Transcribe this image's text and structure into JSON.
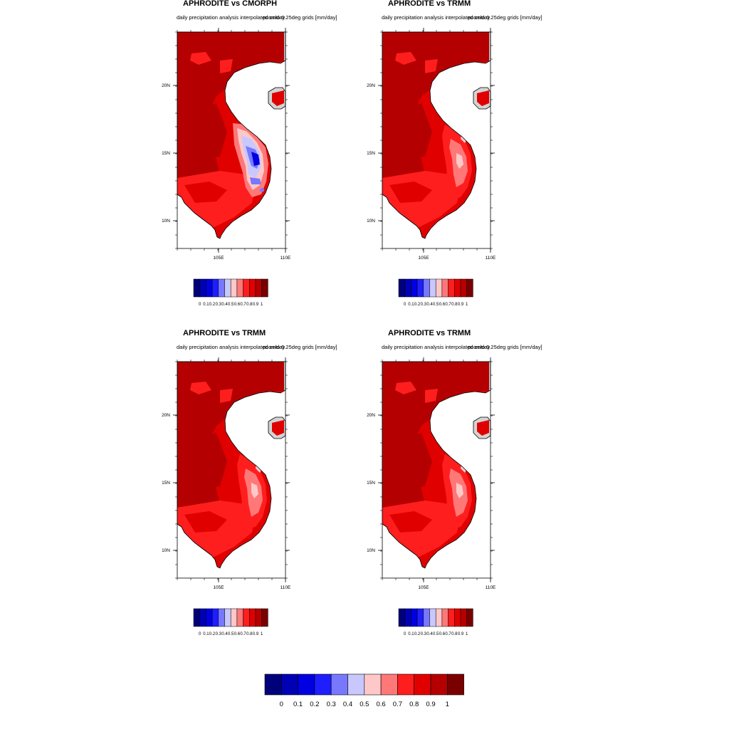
{
  "panels": [
    {
      "title": "APHRODITE vs CMORPH",
      "subtitle_left": "daily precipitation analysis interpolated onto 0.25deg grids [mm/day]",
      "subtitle_right": "pcorr/day",
      "variant": "cmorph"
    },
    {
      "title": "APHRODITE vs TRMM",
      "subtitle_left": "daily precipitation analysis interpolated onto 0.25deg grids [mm/day]",
      "subtitle_right": "pcorr/day",
      "variant": "trmm"
    },
    {
      "title": "APHRODITE vs TRMM",
      "subtitle_left": "daily precipitation analysis interpolated onto 0.25deg grids [mm/day]",
      "subtitle_right": "pcorr/day",
      "variant": "trmm"
    },
    {
      "title": "APHRODITE vs TRMM",
      "subtitle_left": "daily precipitation analysis interpolated onto 0.25deg grids [mm/day]",
      "subtitle_right": "pcorr/day",
      "variant": "trmm"
    }
  ],
  "axes": {
    "x_ticks": [
      "105E",
      "110E"
    ],
    "y_ticks": [
      "20N",
      "15N",
      "10N"
    ]
  },
  "colorbar": {
    "levels": [
      "0",
      "0.1",
      "0.2",
      "0.3",
      "0.4",
      "0.5",
      "0.6",
      "0.7",
      "0.8",
      "0.9",
      "1"
    ],
    "colors": [
      "#00007a",
      "#0000b4",
      "#0000e0",
      "#1e1eff",
      "#7878ff",
      "#c8c8ff",
      "#ffc8c8",
      "#ff7878",
      "#ff1e1e",
      "#e00000",
      "#b40000",
      "#7a0000"
    ]
  },
  "map_colors": {
    "land": "#d3d3d3",
    "coastline": "#000000"
  }
}
